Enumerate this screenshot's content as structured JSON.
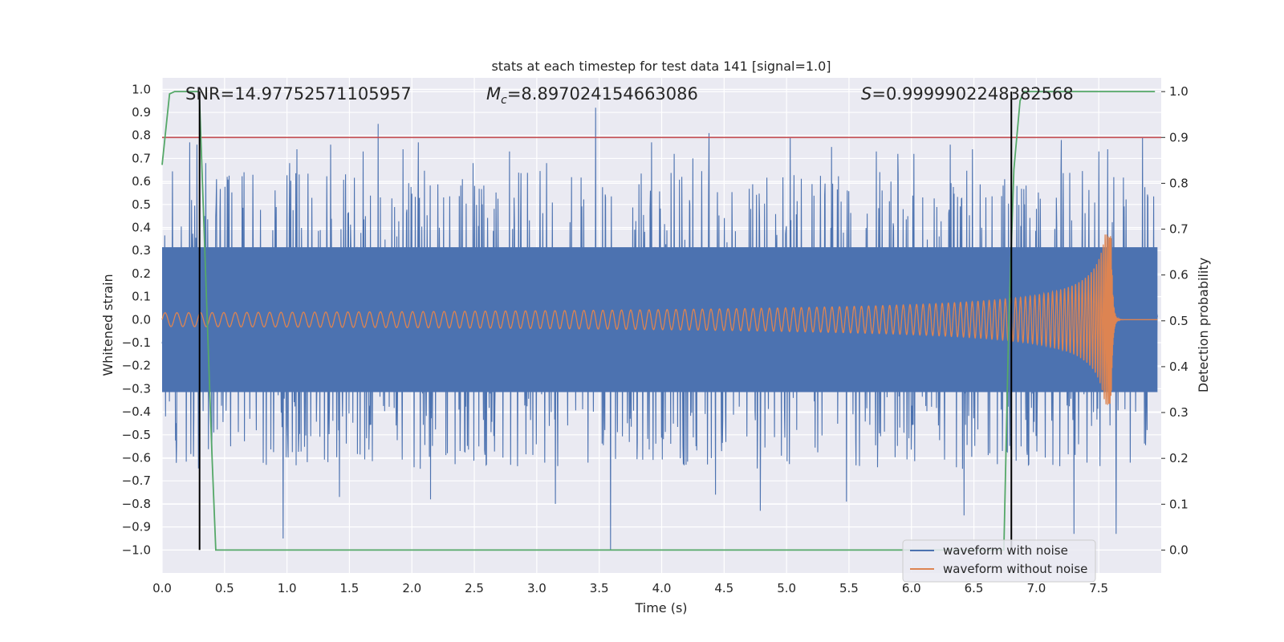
{
  "chart_data": {
    "type": "line",
    "title": "stats at each timestep for test data 141 [signal=1.0]",
    "xlabel": "Time (s)",
    "ylabel": "Whitened strain",
    "ylabel_right": "Detection probability",
    "xlim": [
      0.0,
      8.0
    ],
    "ylim": [
      -1.1,
      1.05
    ],
    "ylim_right": [
      -0.05,
      1.03
    ],
    "x_ticks": [
      "0.0",
      "0.5",
      "1.0",
      "1.5",
      "2.0",
      "2.5",
      "3.0",
      "3.5",
      "4.0",
      "4.5",
      "5.0",
      "5.5",
      "6.0",
      "6.5",
      "7.0",
      "7.5"
    ],
    "y_ticks": [
      "1.0",
      "0.9",
      "0.8",
      "0.7",
      "0.6",
      "0.5",
      "0.4",
      "0.3",
      "0.2",
      "0.1",
      "0.0",
      "-0.1",
      "-0.2",
      "-0.3",
      "-0.4",
      "-0.5",
      "-0.6",
      "-0.7",
      "-0.8",
      "-0.9",
      "-1.0"
    ],
    "y_ticks_right": [
      "1.0",
      "0.9",
      "0.8",
      "0.7",
      "0.6",
      "0.5",
      "0.4",
      "0.3",
      "0.2",
      "0.1",
      "0.0"
    ],
    "annotations": {
      "snr": "SNR=14.97752571105957",
      "mc": "=8.897024154663086",
      "s": "=0.9999902248382568"
    },
    "threshold": 0.9,
    "vlines": [
      0.3,
      6.8
    ],
    "series": [
      {
        "name": "waveform with noise",
        "color": "#4c72b0",
        "envelope": {
          "core_amplitude": 0.37,
          "typical_peak": 0.6,
          "max_peak": 0.96,
          "min_peak": -1.0
        },
        "peaks": [
          [
            0.22,
            0.77
          ],
          [
            0.28,
            0.76
          ],
          [
            0.35,
            0.68
          ],
          [
            0.52,
            0.62
          ],
          [
            0.97,
            -0.95
          ],
          [
            1.02,
            0.68
          ],
          [
            1.08,
            0.74
          ],
          [
            1.35,
            0.76
          ],
          [
            1.42,
            -0.77
          ],
          [
            1.61,
            0.73
          ],
          [
            1.73,
            0.85
          ],
          [
            1.93,
            0.74
          ],
          [
            2.05,
            0.77
          ],
          [
            2.15,
            -0.78
          ],
          [
            2.49,
            0.68
          ],
          [
            2.78,
            0.73
          ],
          [
            3.08,
            0.68
          ],
          [
            3.15,
            -0.8
          ],
          [
            3.47,
            0.92
          ],
          [
            3.59,
            -1.0
          ],
          [
            3.92,
            0.77
          ],
          [
            4.1,
            0.72
          ],
          [
            4.25,
            0.7
          ],
          [
            4.38,
            0.81
          ],
          [
            4.43,
            -0.76
          ],
          [
            4.79,
            -0.83
          ],
          [
            5.03,
            0.79
          ],
          [
            5.36,
            0.75
          ],
          [
            5.48,
            -0.79
          ],
          [
            5.72,
            0.73
          ],
          [
            5.89,
            0.72
          ],
          [
            6.02,
            0.72
          ],
          [
            6.31,
            0.76
          ],
          [
            6.42,
            -0.85
          ],
          [
            6.49,
            0.74
          ],
          [
            6.8,
            0.76
          ],
          [
            7.2,
            0.78
          ],
          [
            7.3,
            -0.93
          ],
          [
            7.5,
            0.73
          ],
          [
            7.57,
            0.74
          ],
          [
            7.64,
            -0.93
          ],
          [
            7.85,
            0.79
          ]
        ]
      },
      {
        "name": "waveform without noise",
        "color": "#dd8452",
        "chirp": {
          "start_amplitude": 0.03,
          "peak_amplitude": 0.37,
          "peak_time": 7.6,
          "start_frequency_hz": 10.5
        }
      },
      {
        "name": "detection probability",
        "color": "#55a868",
        "axis": "right",
        "x": [
          0.0,
          0.06,
          0.1,
          0.2,
          0.29,
          0.3,
          0.4,
          0.43,
          0.44,
          6.74,
          6.78,
          6.82,
          6.87,
          6.9,
          7.0,
          7.5,
          7.95
        ],
        "y": [
          0.84,
          0.995,
          1.0,
          1.0,
          1.0,
          0.98,
          0.2,
          0.0,
          0.0,
          0.0,
          0.5,
          0.83,
          0.98,
          1.0,
          1.0,
          1.0,
          1.0
        ]
      }
    ],
    "legend": {
      "placement": "lower right",
      "entries": [
        "waveform with noise",
        "waveform without noise"
      ]
    },
    "colors": {
      "axes_background": "#eaeaf2",
      "grid": "#ffffff",
      "threshold": "#c44e52",
      "vline": "#000000"
    },
    "grid": true
  }
}
